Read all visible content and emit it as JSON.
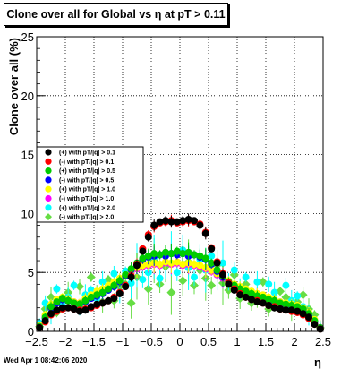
{
  "page": {
    "title": "Clone  over all for Global vs   η at pT > 0.11",
    "timestamp": "Wed Apr  1 08:42:06 2020"
  },
  "chart_data": {
    "type": "scatter",
    "title": "Clone  over all for Global vs   η at pT > 0.11",
    "xlabel": "η",
    "ylabel": "Clone  over all (%)",
    "xlim": [
      -2.5,
      2.5
    ],
    "ylim": [
      0,
      25
    ],
    "xticks": [
      -2.5,
      -2,
      -1.5,
      -1,
      -0.5,
      0,
      0.5,
      1,
      1.5,
      2,
      2.5
    ],
    "xtick_labels": [
      "−2.5",
      "−2",
      "−1.5",
      "−1",
      "−0.5",
      "0",
      "0.5",
      "1",
      "1.5",
      "2",
      "2.5"
    ],
    "yticks": [
      0,
      5,
      10,
      15,
      20,
      25
    ],
    "ytick_labels": [
      "0",
      "5",
      "10",
      "15",
      "20",
      "25"
    ],
    "grid": true,
    "legend_position": "left-middle",
    "series": [
      {
        "name": "(+) with pT/|q| > 0.1",
        "color": "#000000",
        "marker": "circle",
        "x": [
          -2.45,
          -2.35,
          -2.25,
          -2.15,
          -2.05,
          -1.95,
          -1.85,
          -1.75,
          -1.65,
          -1.55,
          -1.45,
          -1.35,
          -1.25,
          -1.15,
          -1.05,
          -0.95,
          -0.85,
          -0.75,
          -0.65,
          -0.55,
          -0.45,
          -0.35,
          -0.25,
          -0.15,
          -0.05,
          0.05,
          0.15,
          0.25,
          0.35,
          0.45,
          0.55,
          0.65,
          0.75,
          0.85,
          0.95,
          1.05,
          1.15,
          1.25,
          1.35,
          1.45,
          1.55,
          1.65,
          1.75,
          1.85,
          1.95,
          2.05,
          2.15,
          2.25,
          2.35,
          2.45
        ],
        "y": [
          0.3,
          0.9,
          1.5,
          1.8,
          2.0,
          2.0,
          1.9,
          1.7,
          1.8,
          2.1,
          2.3,
          2.4,
          2.6,
          2.8,
          3.2,
          3.8,
          4.6,
          5.6,
          6.8,
          8.0,
          9.0,
          9.3,
          9.4,
          9.3,
          9.3,
          9.4,
          9.5,
          9.4,
          9.0,
          8.3,
          7.0,
          5.8,
          4.8,
          4.0,
          3.5,
          3.1,
          2.9,
          2.7,
          2.5,
          2.4,
          2.2,
          2.0,
          1.9,
          1.8,
          1.8,
          1.7,
          1.5,
          1.2,
          0.6,
          0.2
        ]
      },
      {
        "name": "(-) with pT/|q| > 0.1",
        "color": "#ff0000",
        "marker": "circle",
        "x": [
          -2.45,
          -2.35,
          -2.25,
          -2.15,
          -2.05,
          -1.95,
          -1.85,
          -1.75,
          -1.65,
          -1.55,
          -1.45,
          -1.35,
          -1.25,
          -1.15,
          -1.05,
          -0.95,
          -0.85,
          -0.75,
          -0.65,
          -0.55,
          -0.45,
          -0.35,
          -0.25,
          -0.15,
          -0.05,
          0.05,
          0.15,
          0.25,
          0.35,
          0.45,
          0.55,
          0.65,
          0.75,
          0.85,
          0.95,
          1.05,
          1.15,
          1.25,
          1.35,
          1.45,
          1.55,
          1.65,
          1.75,
          1.85,
          1.95,
          2.05,
          2.15,
          2.25,
          2.35,
          2.45
        ],
        "y": [
          0.3,
          0.8,
          1.4,
          1.7,
          1.9,
          2.0,
          1.9,
          1.8,
          1.9,
          2.0,
          2.2,
          2.4,
          2.6,
          2.9,
          3.3,
          3.9,
          4.7,
          5.7,
          7.0,
          8.2,
          8.9,
          9.2,
          9.3,
          9.4,
          9.2,
          9.3,
          9.4,
          9.3,
          9.1,
          8.4,
          7.1,
          5.9,
          4.9,
          4.1,
          3.6,
          3.2,
          2.9,
          2.7,
          2.6,
          2.4,
          2.2,
          2.1,
          1.9,
          1.8,
          1.7,
          1.6,
          1.4,
          1.1,
          0.6,
          0.2
        ]
      },
      {
        "name": "(+) with pT/|q| > 0.5",
        "color": "#00cc00",
        "marker": "circle",
        "x": [
          -2.45,
          -2.35,
          -2.25,
          -2.15,
          -2.05,
          -1.95,
          -1.85,
          -1.75,
          -1.65,
          -1.55,
          -1.45,
          -1.35,
          -1.25,
          -1.15,
          -1.05,
          -0.95,
          -0.85,
          -0.75,
          -0.65,
          -0.55,
          -0.45,
          -0.35,
          -0.25,
          -0.15,
          -0.05,
          0.05,
          0.15,
          0.25,
          0.35,
          0.45,
          0.55,
          0.65,
          0.75,
          0.85,
          0.95,
          1.05,
          1.15,
          1.25,
          1.35,
          1.45,
          1.55,
          1.65,
          1.75,
          1.85,
          1.95,
          2.05,
          2.15,
          2.25,
          2.35,
          2.45
        ],
        "y": [
          0.4,
          1.2,
          2.1,
          2.5,
          2.8,
          2.6,
          2.4,
          2.3,
          2.6,
          2.9,
          3.1,
          3.3,
          3.6,
          3.9,
          4.3,
          4.8,
          5.3,
          5.8,
          6.2,
          6.4,
          6.6,
          6.5,
          6.7,
          6.6,
          6.8,
          6.6,
          6.7,
          6.5,
          6.4,
          6.2,
          5.8,
          5.2,
          4.7,
          4.2,
          3.9,
          3.6,
          3.4,
          3.2,
          3.0,
          2.9,
          2.7,
          2.6,
          2.4,
          2.3,
          2.2,
          2.1,
          1.9,
          1.5,
          0.9,
          0.3
        ]
      },
      {
        "name": "(-) with pT/|q| > 0.5",
        "color": "#0000ff",
        "marker": "circle",
        "x": [
          -2.45,
          -2.35,
          -2.25,
          -2.15,
          -2.05,
          -1.95,
          -1.85,
          -1.75,
          -1.65,
          -1.55,
          -1.45,
          -1.35,
          -1.25,
          -1.15,
          -1.05,
          -0.95,
          -0.85,
          -0.75,
          -0.65,
          -0.55,
          -0.45,
          -0.35,
          -0.25,
          -0.15,
          -0.05,
          0.05,
          0.15,
          0.25,
          0.35,
          0.45,
          0.55,
          0.65,
          0.75,
          0.85,
          0.95,
          1.05,
          1.15,
          1.25,
          1.35,
          1.45,
          1.55,
          1.65,
          1.75,
          1.85,
          1.95,
          2.05,
          2.15,
          2.25,
          2.35,
          2.45
        ],
        "y": [
          0.4,
          1.1,
          2.0,
          2.4,
          2.7,
          2.6,
          2.4,
          2.3,
          2.5,
          2.8,
          3.0,
          3.2,
          3.5,
          3.8,
          4.2,
          4.7,
          5.2,
          5.7,
          6.1,
          6.3,
          6.4,
          6.5,
          6.4,
          6.6,
          6.5,
          6.6,
          6.4,
          6.5,
          6.3,
          6.1,
          5.7,
          5.1,
          4.6,
          4.1,
          3.8,
          3.5,
          3.3,
          3.1,
          2.9,
          2.8,
          2.6,
          2.5,
          2.3,
          2.2,
          2.1,
          2.0,
          1.8,
          1.4,
          0.8,
          0.3
        ]
      },
      {
        "name": "(+) with pT/|q| > 1.0",
        "color": "#ffff00",
        "marker": "circle",
        "x": [
          -2.45,
          -2.35,
          -2.25,
          -2.15,
          -2.05,
          -1.95,
          -1.85,
          -1.75,
          -1.65,
          -1.55,
          -1.45,
          -1.35,
          -1.25,
          -1.15,
          -1.05,
          -0.95,
          -0.85,
          -0.75,
          -0.65,
          -0.55,
          -0.45,
          -0.35,
          -0.25,
          -0.15,
          -0.05,
          0.05,
          0.15,
          0.25,
          0.35,
          0.45,
          0.55,
          0.65,
          0.75,
          0.85,
          0.95,
          1.05,
          1.15,
          1.25,
          1.35,
          1.45,
          1.55,
          1.65,
          1.75,
          1.85,
          1.95,
          2.05,
          2.15,
          2.25,
          2.35,
          2.45
        ],
        "y": [
          0.5,
          1.4,
          2.3,
          2.7,
          2.9,
          2.7,
          2.5,
          2.4,
          2.8,
          3.1,
          3.4,
          3.6,
          3.9,
          4.2,
          4.5,
          4.8,
          5.1,
          5.4,
          5.6,
          5.7,
          5.8,
          5.7,
          5.9,
          5.8,
          5.9,
          5.7,
          5.8,
          5.7,
          5.6,
          5.4,
          5.2,
          4.9,
          4.6,
          4.3,
          4.0,
          3.8,
          3.6,
          3.4,
          3.2,
          3.1,
          2.9,
          2.7,
          2.5,
          2.4,
          2.3,
          2.2,
          2.0,
          1.6,
          1.0,
          0.3
        ]
      },
      {
        "name": "(-) with pT/|q| > 1.0",
        "color": "#ff00ff",
        "marker": "circle",
        "x": [
          -2.45,
          -2.35,
          -2.25,
          -2.15,
          -2.05,
          -1.95,
          -1.85,
          -1.75,
          -1.65,
          -1.55,
          -1.45,
          -1.35,
          -1.25,
          -1.15,
          -1.05,
          -0.95,
          -0.85,
          -0.75,
          -0.65,
          -0.55,
          -0.45,
          -0.35,
          -0.25,
          -0.15,
          -0.05,
          0.05,
          0.15,
          0.25,
          0.35,
          0.45,
          0.55,
          0.65,
          0.75,
          0.85,
          0.95,
          1.05,
          1.15,
          1.25,
          1.35,
          1.45,
          1.55,
          1.65,
          1.75,
          1.85,
          1.95,
          2.05,
          2.15,
          2.25,
          2.35,
          2.45
        ],
        "y": [
          0.5,
          1.3,
          2.2,
          2.6,
          2.8,
          2.6,
          2.5,
          2.4,
          2.7,
          3.0,
          3.3,
          3.5,
          3.8,
          4.1,
          4.4,
          4.7,
          5.0,
          5.3,
          5.5,
          5.6,
          5.7,
          5.6,
          5.8,
          5.7,
          5.8,
          5.6,
          5.7,
          5.6,
          5.5,
          5.3,
          5.1,
          4.8,
          4.5,
          4.2,
          3.9,
          3.7,
          3.5,
          3.3,
          3.2,
          3.0,
          2.8,
          2.6,
          2.5,
          2.3,
          2.2,
          2.1,
          1.9,
          1.5,
          0.9,
          0.3
        ]
      },
      {
        "name": "(+) with pT/|q| > 2.0",
        "color": "#00ffff",
        "marker": "circle",
        "x": [
          -2.45,
          -2.35,
          -2.25,
          -2.15,
          -2.05,
          -1.95,
          -1.85,
          -1.75,
          -1.65,
          -1.55,
          -1.45,
          -1.35,
          -1.25,
          -1.15,
          -1.05,
          -0.95,
          -0.85,
          -0.75,
          -0.65,
          -0.55,
          -0.45,
          -0.35,
          -0.25,
          -0.15,
          -0.05,
          0.05,
          0.15,
          0.25,
          0.35,
          0.45,
          0.55,
          0.65,
          0.75,
          0.85,
          0.95,
          1.05,
          1.15,
          1.25,
          1.35,
          1.45,
          1.55,
          1.65,
          1.75,
          1.85,
          1.95,
          2.05,
          2.15,
          2.25,
          2.35,
          2.45
        ],
        "y": [
          0.7,
          2.4,
          1.5,
          3.6,
          2.2,
          2.9,
          3.9,
          2.0,
          3.1,
          3.5,
          2.8,
          4.2,
          3.6,
          4.9,
          3.3,
          5.1,
          4.1,
          5.6,
          4.4,
          5.0,
          6.3,
          4.5,
          5.8,
          6.6,
          5.0,
          6.9,
          5.4,
          4.6,
          6.1,
          5.2,
          6.4,
          4.8,
          5.8,
          4.2,
          5.2,
          3.6,
          4.6,
          3.0,
          4.2,
          2.6,
          4.0,
          3.3,
          2.4,
          3.9,
          2.6,
          3.0,
          2.1,
          1.4,
          0.8,
          0.2
        ]
      },
      {
        "name": "(-) with pT/|q| > 2.0",
        "color": "#66dd44",
        "marker": "diamond",
        "x": [
          -2.45,
          -2.35,
          -2.25,
          -2.15,
          -2.05,
          -1.95,
          -1.85,
          -1.75,
          -1.65,
          -1.55,
          -1.45,
          -1.35,
          -1.25,
          -1.15,
          -1.05,
          -0.95,
          -0.85,
          -0.75,
          -0.65,
          -0.55,
          -0.45,
          -0.35,
          -0.25,
          -0.15,
          -0.05,
          0.05,
          0.15,
          0.25,
          0.35,
          0.45,
          0.55,
          0.65,
          0.75,
          0.85,
          0.95,
          1.05,
          1.15,
          1.25,
          1.35,
          1.45,
          1.55,
          1.65,
          1.75,
          1.85,
          1.95,
          2.05,
          2.15,
          2.25,
          2.35,
          2.45
        ],
        "y": [
          0.4,
          1.9,
          2.9,
          1.6,
          2.5,
          3.3,
          2.0,
          3.8,
          2.6,
          4.6,
          3.3,
          2.5,
          4.4,
          2.6,
          3.8,
          4.0,
          2.4,
          4.6,
          5.5,
          3.6,
          6.0,
          4.0,
          5.5,
          3.3,
          5.8,
          4.3,
          5.9,
          3.9,
          5.2,
          4.5,
          3.9,
          5.6,
          4.1,
          3.5,
          4.8,
          2.8,
          4.0,
          2.4,
          2.9,
          4.2,
          1.9,
          2.6,
          3.4,
          2.9,
          1.8,
          2.5,
          3.1,
          1.9,
          1.4,
          0.3
        ]
      }
    ]
  }
}
